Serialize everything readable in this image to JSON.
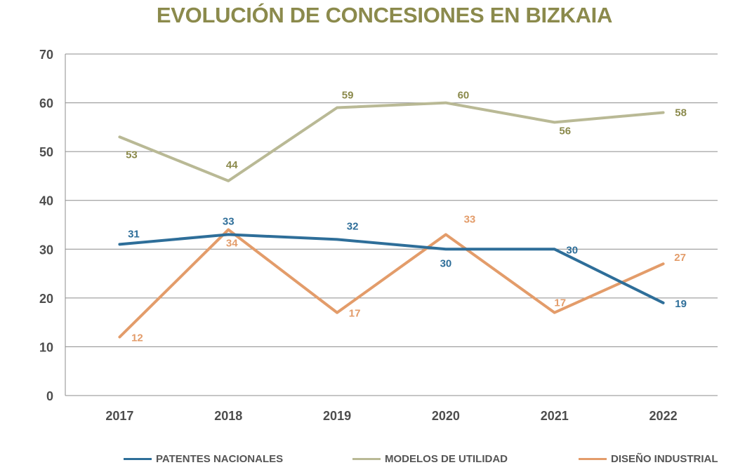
{
  "chart_data": {
    "type": "line",
    "title": "EVOLUCIÓN DE CONCESIONES EN BIZKAIA",
    "categories": [
      "2017",
      "2018",
      "2019",
      "2020",
      "2021",
      "2022"
    ],
    "ylim": [
      0,
      70
    ],
    "yticks": [
      "0",
      "10",
      "20",
      "30",
      "40",
      "50",
      "60",
      "70"
    ],
    "grid": true,
    "legend_position": "bottom",
    "series": [
      {
        "name": "PATENTES NACIONALES",
        "color": "#2e6e99",
        "values": [
          31,
          33,
          32,
          30,
          30,
          19
        ]
      },
      {
        "name": "MODELOS DE UTILIDAD",
        "color": "#b9b995",
        "label_color": "#8b8a4c",
        "values": [
          53,
          44,
          59,
          60,
          56,
          58
        ]
      },
      {
        "name": "DISEÑO INDUSTRIAL",
        "color": "#e39c6a",
        "values": [
          12,
          34,
          17,
          33,
          17,
          27
        ]
      }
    ]
  }
}
